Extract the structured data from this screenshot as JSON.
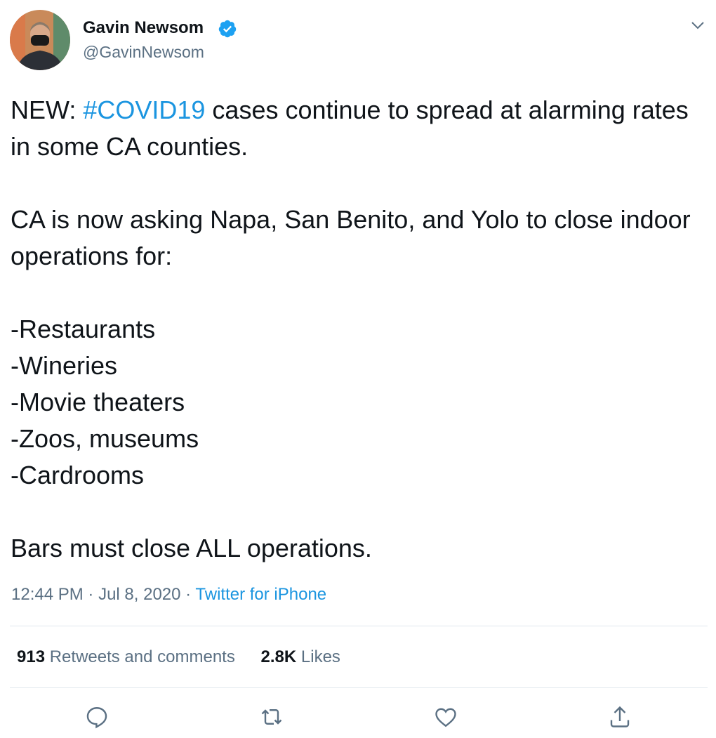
{
  "author": {
    "name": "Gavin Newsom",
    "handle": "@GavinNewsom"
  },
  "body": {
    "lead_before": "NEW: ",
    "hashtag": "#COVID19",
    "lead_after": " cases continue to spread at alarming rates in some CA counties.",
    "paragraph_2": "CA is now asking Napa, San Benito, and Yolo to close indoor operations for:",
    "list": [
      "-Restaurants",
      "-Wineries",
      "-Movie theaters",
      "-Zoos, museums",
      "-Cardrooms"
    ],
    "paragraph_4": "Bars must close ALL operations."
  },
  "meta": {
    "time": "12:44 PM",
    "separator": "·",
    "date": "Jul 8, 2020",
    "source": "Twitter for iPhone"
  },
  "stats": {
    "retweets_count": "913",
    "retweets_label": "Retweets and comments",
    "likes_count": "2.8K",
    "likes_label": "Likes"
  }
}
